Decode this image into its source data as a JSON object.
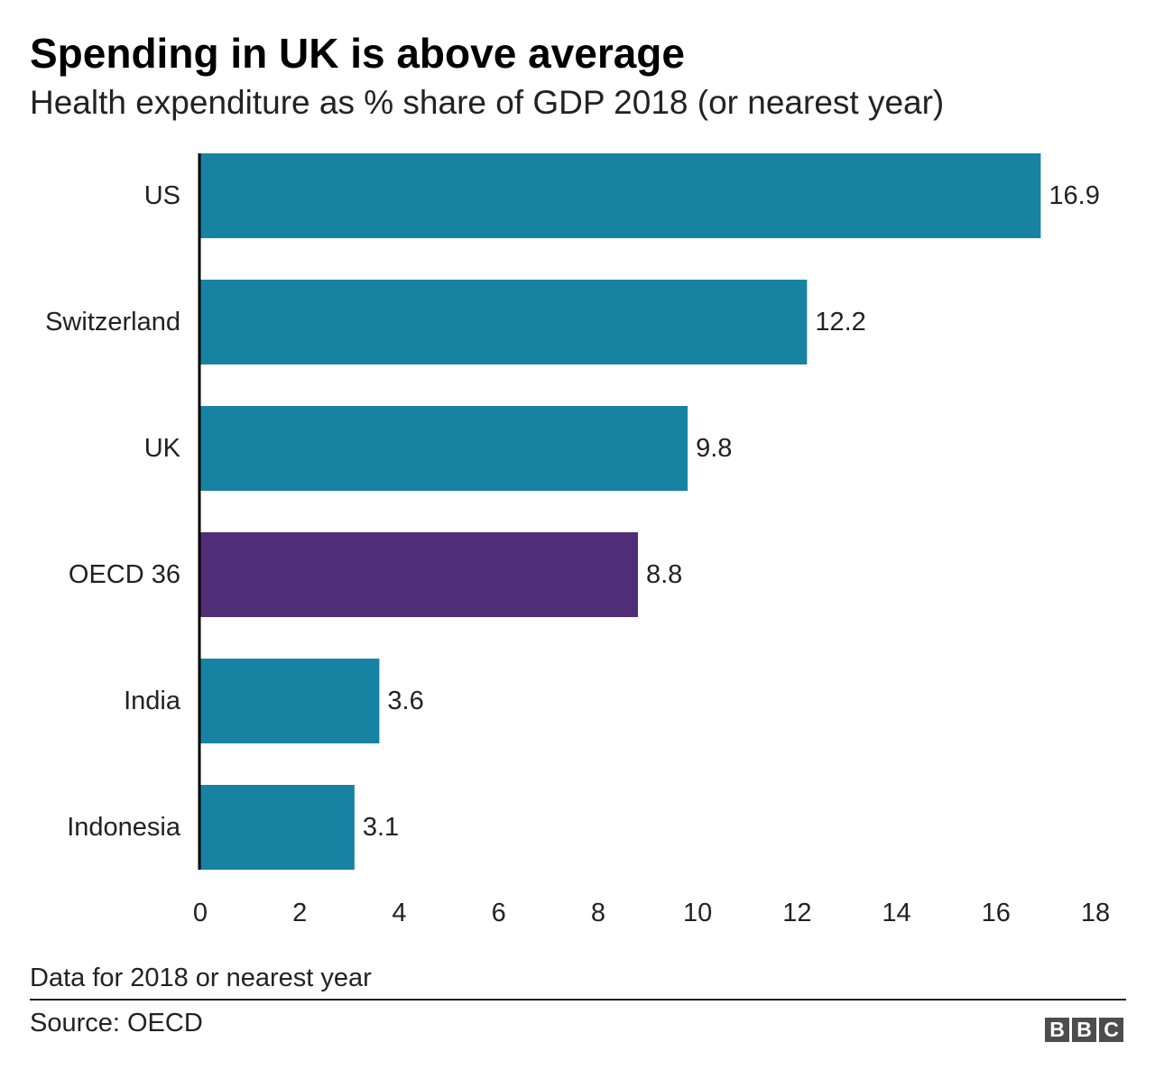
{
  "title": "Spending in UK is above average",
  "subtitle": "Health expenditure as % share of GDP 2018 (or nearest year)",
  "footnote": "Data for 2018 or nearest year",
  "source": "Source: OECD",
  "logo": {
    "letters": [
      "B",
      "B",
      "C"
    ]
  },
  "colors": {
    "bar": "#1782a2",
    "highlight": "#4f2d77",
    "text": "#222222",
    "axis": "#000000"
  },
  "chart_data": {
    "type": "bar",
    "orientation": "horizontal",
    "title": "Spending in UK is above average",
    "subtitle": "Health expenditure as % share of GDP 2018 (or nearest year)",
    "categories": [
      "US",
      "Switzerland",
      "UK",
      "OECD 36",
      "India",
      "Indonesia"
    ],
    "values": [
      16.9,
      12.2,
      9.8,
      8.8,
      3.6,
      3.1
    ],
    "value_labels": [
      "16.9",
      "12.2",
      "9.8",
      "8.8",
      "3.6",
      "3.1"
    ],
    "highlight": [
      "OECD 36"
    ],
    "xlim": [
      0,
      18
    ],
    "xticks": [
      0,
      2,
      4,
      6,
      8,
      10,
      12,
      14,
      16,
      18
    ],
    "xlabel": "",
    "ylabel": "",
    "grid": false,
    "legend": "none"
  }
}
